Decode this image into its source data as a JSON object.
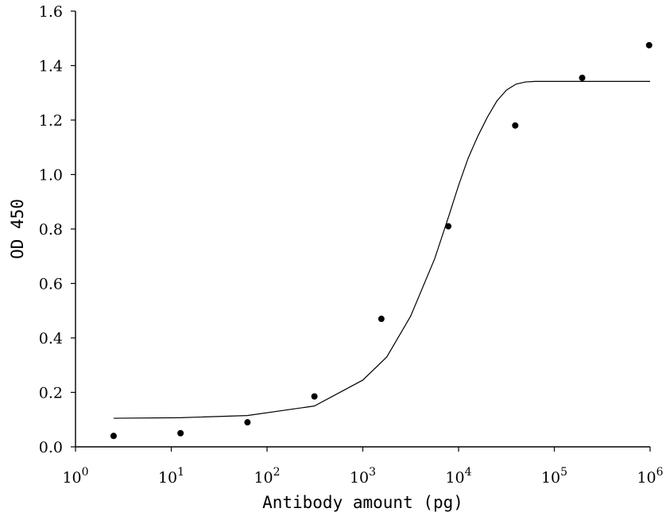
{
  "chart_data": {
    "type": "scatter",
    "title": "",
    "xlabel": "Antibody amount (pg)",
    "ylabel": "OD 450",
    "x_scale": "log10",
    "xlim": [
      1,
      1000000
    ],
    "ylim": [
      0,
      1.6
    ],
    "x_ticks": [
      {
        "value": 1,
        "base": "10",
        "exp": "0"
      },
      {
        "value": 10,
        "base": "10",
        "exp": "1"
      },
      {
        "value": 100,
        "base": "10",
        "exp": "2"
      },
      {
        "value": 1000,
        "base": "10",
        "exp": "3"
      },
      {
        "value": 10000,
        "base": "10",
        "exp": "4"
      },
      {
        "value": 100000,
        "base": "10",
        "exp": "5"
      },
      {
        "value": 1000000,
        "base": "10",
        "exp": "6"
      }
    ],
    "y_ticks": [
      {
        "value": 0,
        "label": "0.0"
      },
      {
        "value": 0.2,
        "label": "0.2"
      },
      {
        "value": 0.4,
        "label": "0.4"
      },
      {
        "value": 0.6,
        "label": "0.6"
      },
      {
        "value": 0.8,
        "label": "0.8"
      },
      {
        "value": 1.0,
        "label": "1.0"
      },
      {
        "value": 1.2,
        "label": "1.2"
      },
      {
        "value": 1.4,
        "label": "1.4"
      },
      {
        "value": 1.6,
        "label": "1.6"
      }
    ],
    "grid": false,
    "legend": "none",
    "series": [
      {
        "kind": "points",
        "x": [
          2.5,
          12.5,
          62.5,
          312.5,
          1562.5,
          7812.5,
          39062.5,
          195312.5,
          976562.5
        ],
        "y": [
          0.04,
          0.05,
          0.09,
          0.185,
          0.47,
          0.81,
          1.18,
          1.355,
          1.475
        ]
      },
      {
        "kind": "fit-curve",
        "x": [
          2.5,
          12.5,
          62.5,
          312.5,
          1000,
          1780,
          3160,
          5620,
          7943,
          10000,
          12590,
          15850,
          19950,
          25120,
          31620,
          39810,
          50120,
          63100,
          100000,
          1000000
        ],
        "y": [
          0.105,
          0.107,
          0.115,
          0.15,
          0.245,
          0.33,
          0.48,
          0.69,
          0.85,
          0.96,
          1.06,
          1.14,
          1.21,
          1.27,
          1.31,
          1.332,
          1.34,
          1.342,
          1.342,
          1.342
        ]
      }
    ],
    "colors": {
      "marks": "#000000",
      "background": "#ffffff"
    }
  }
}
